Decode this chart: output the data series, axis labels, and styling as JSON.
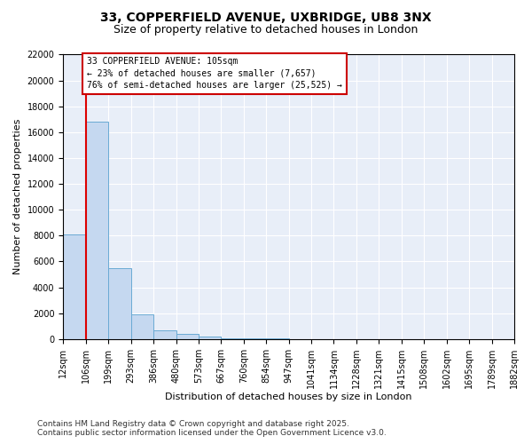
{
  "title_line1": "33, COPPERFIELD AVENUE, UXBRIDGE, UB8 3NX",
  "title_line2": "Size of property relative to detached houses in London",
  "annotation_title": "33 COPPERFIELD AVENUE: 105sqm",
  "annotation_line1": "← 23% of detached houses are smaller (7,657)",
  "annotation_line2": "76% of semi-detached houses are larger (25,525) →",
  "xlabel": "Distribution of detached houses by size in London",
  "ylabel": "Number of detached properties",
  "property_line_x": 106,
  "bins": [
    12,
    106,
    199,
    293,
    386,
    480,
    573,
    667,
    760,
    854,
    947,
    1041,
    1134,
    1228,
    1321,
    1415,
    1508,
    1602,
    1695,
    1789,
    1882
  ],
  "counts": [
    8100,
    16800,
    5500,
    1900,
    700,
    400,
    200,
    80,
    40,
    20,
    10,
    5,
    3,
    2,
    1,
    1,
    1,
    0,
    0,
    0
  ],
  "bar_color": "#c5d8f0",
  "bar_edge_color": "#6aaad4",
  "line_color": "#dd0000",
  "background_color": "#e8eef8",
  "grid_color": "#ffffff",
  "ylim": [
    0,
    22000
  ],
  "yticks": [
    0,
    2000,
    4000,
    6000,
    8000,
    10000,
    12000,
    14000,
    16000,
    18000,
    20000,
    22000
  ],
  "tick_labels": [
    "12sqm",
    "106sqm",
    "199sqm",
    "293sqm",
    "386sqm",
    "480sqm",
    "573sqm",
    "667sqm",
    "760sqm",
    "854sqm",
    "947sqm",
    "1041sqm",
    "1134sqm",
    "1228sqm",
    "1321sqm",
    "1415sqm",
    "1508sqm",
    "1602sqm",
    "1695sqm",
    "1789sqm",
    "1882sqm"
  ],
  "footer_line1": "Contains HM Land Registry data © Crown copyright and database right 2025.",
  "footer_line2": "Contains public sector information licensed under the Open Government Licence v3.0.",
  "title_fontsize": 10,
  "subtitle_fontsize": 9,
  "axis_label_fontsize": 8,
  "tick_fontsize": 7,
  "annotation_fontsize": 7,
  "footer_fontsize": 6.5
}
